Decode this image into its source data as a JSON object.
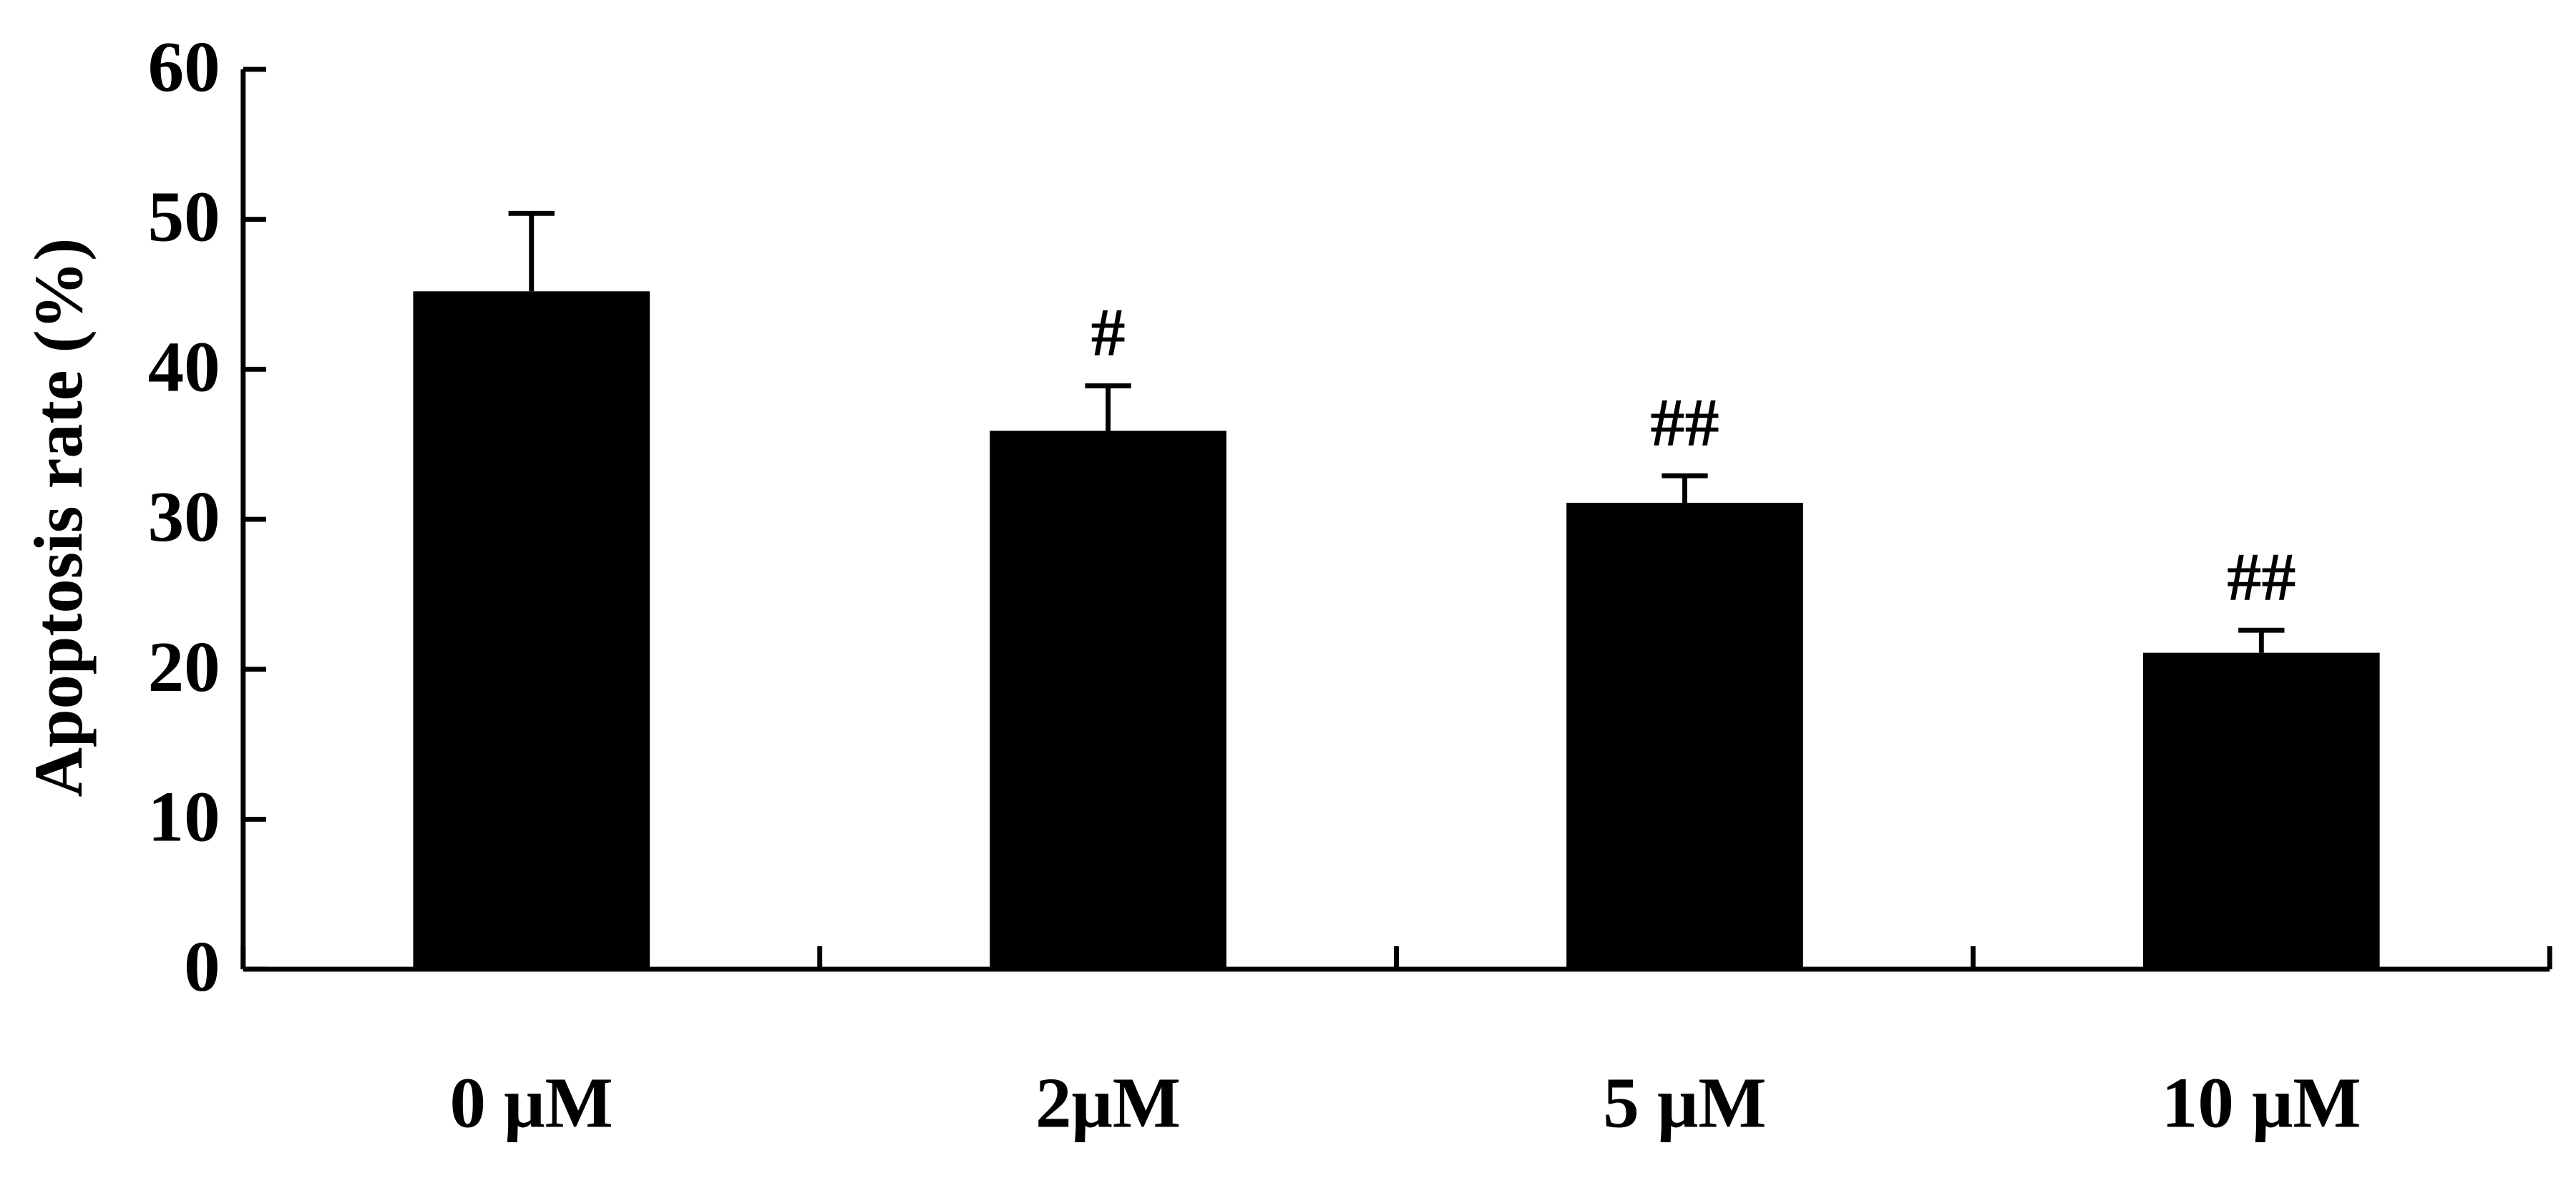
{
  "chart_data": {
    "type": "bar",
    "y_label": "Apoptosis rate (%)",
    "categories": [
      "0 μM",
      "2μM",
      "5 μM",
      "10 μM"
    ],
    "values": [
      45.2,
      35.9,
      31.1,
      21.1
    ],
    "errors": [
      5.2,
      3.0,
      1.8,
      1.5
    ],
    "annotations": [
      null,
      "#",
      "##",
      "##"
    ],
    "color": "#000000",
    "ylim": [
      0,
      60
    ],
    "yticks": [
      0,
      10,
      20,
      30,
      40,
      50,
      60
    ]
  }
}
